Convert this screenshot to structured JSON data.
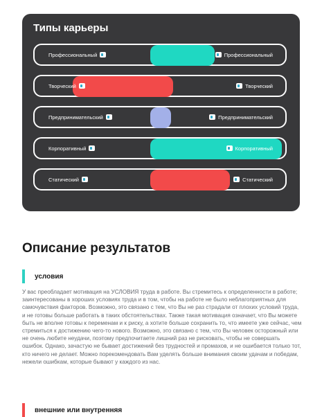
{
  "card": {
    "title": "Типы карьеры",
    "rows": [
      {
        "left_label": "Профессиональный",
        "right_label": "Профессиональный",
        "color": "#1fd8c2"
      },
      {
        "left_label": "Творческий",
        "right_label": "Творческий",
        "color": "#f24a4a"
      },
      {
        "left_label": "Предпринимательский",
        "right_label": "Предпринимательский",
        "color": "#a3b0e8"
      },
      {
        "left_label": "Корпоративный",
        "right_label": "Корпоративный",
        "color": "#1fd8c2"
      },
      {
        "left_label": "Статический",
        "right_label": "Статический",
        "color": "#f24a4a"
      }
    ]
  },
  "results": {
    "heading": "Описание результатов",
    "section1_title": "условия",
    "section1_text": "У вас преобладает мотивация на УСЛОВИЯ труда в работе. Вы стремитесь к определенности в работе; заинтересованы в хороших условиях труда и в том, чтобы на работе не было неблагоприятных для самочувствия факторов. Возможно, это связано с тем, что Вы не раз страдали от плохих условий труда, и не готовы больше работать в таких обстоятельствах. Также такая мотивация означает, что Вы можете быть не вполне готовы к переменам и к риску, а хотите больше сохранить то, что имеете уже сейчас, чем стремиться к достижению чего-то нового. Возможно, это связано с тем, что Вы человек осторожный или не очень любите неудачи, поэтому предпочитаете лишний раз не рисковать, чтобы не совершать ошибок. Однако, зачастую не бывает достижений без трудностей и промахов, и не ошибается только тот, кто ничего не делает. Можно порекомендовать Вам уделять больше внимания своим удачам и победам, нежели ошибкам, которые бывают у каждого из нас.",
    "section2_title": "внешние или внутренняя",
    "accent_teal": "#2ed1c2",
    "accent_red": "#f24a4a"
  }
}
